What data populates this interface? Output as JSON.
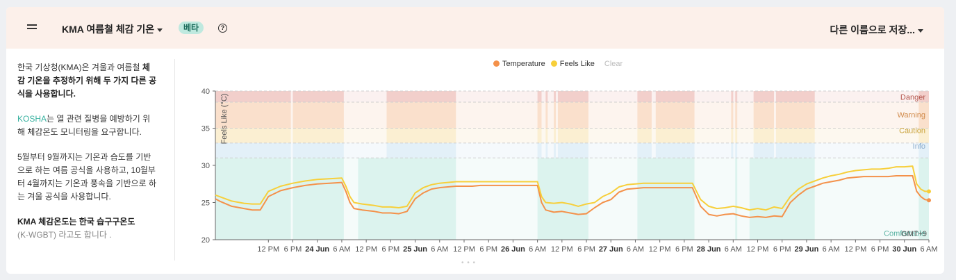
{
  "header": {
    "title": "KMA 여름철 체감 기온",
    "badge": "베타",
    "help_icon": "?",
    "save_label": "다른 이름으로 저장..."
  },
  "sidebar": {
    "p1_plain": "한국 기상청(KMA)은 겨울과 여름철 ",
    "p1_bold": "체감 기온을 추정하기 위해 두 가지 다른 공식을 사용합니다.",
    "p2_link": "KOSHA",
    "p2_rest": "는 열 관련 질병을 예방하기 위해 체감온도 모니터링을 요구합니다.",
    "p3": "5월부터 9월까지는 기온과 습도를 기반으로 하는 여름 공식을 사용하고, 10월부터 4월까지는 기온과 풍속을 기반으로 하는 겨울 공식을 사용합니다.",
    "p4_bold": "KMA 체감온도는 한국 습구구온도",
    "p4_muted": "(K-WGBT) 라고도 합니다 ."
  },
  "legend": {
    "temperature": "Temperature",
    "feels_like": "Feels Like",
    "clear": "Clear"
  },
  "colors": {
    "temperature": "#f4914a",
    "feels_like": "#f7cf3a",
    "danger": "#f2cfcb",
    "warning": "#fae0cc",
    "caution": "#fbefd2",
    "info": "#e3f0f8",
    "comfortable": "#dcf3ee",
    "danger_text": "#b3534a",
    "warning_text": "#d08a4a",
    "caution_text": "#c9a23a",
    "info_text": "#88aacc",
    "comfortable_text": "#5ab3a3"
  },
  "chart_data": {
    "type": "line",
    "ylabel": "Feels Like (°C)",
    "ylim": [
      20,
      40
    ],
    "yticks": [
      20,
      25,
      30,
      35,
      40
    ],
    "timezone": "GMT+9",
    "x_ticks": [
      "12 PM",
      "6 PM",
      "24 Jun",
      "6 AM",
      "12 PM",
      "6 PM",
      "25 Jun",
      "6 AM",
      "12 PM",
      "6 PM",
      "26 Jun",
      "6 AM",
      "12 PM",
      "6 PM",
      "27 Jun",
      "6 AM",
      "12 PM",
      "6 PM",
      "28 Jun",
      "6 AM",
      "12 PM",
      "6 PM",
      "29 Jun",
      "6 AM",
      "12 PM",
      "6 PM",
      "30 Jun",
      "6 AM"
    ],
    "x_range_hours": [
      -13,
      162
    ],
    "bands": [
      {
        "label": "Danger",
        "from": 38.5,
        "to": 40
      },
      {
        "label": "Warning",
        "from": 35,
        "to": 38.5
      },
      {
        "label": "Caution",
        "from": 33,
        "to": 35
      },
      {
        "label": "Info",
        "from": 31,
        "to": 33
      },
      {
        "label": "Comfortable",
        "from": 20,
        "to": 31
      }
    ],
    "band_active_intervals_hours": [
      [
        -13,
        5.5
      ],
      [
        6,
        18.5
      ],
      [
        29,
        46
      ],
      [
        66,
        67
      ],
      [
        68,
        68.5
      ],
      [
        70,
        70.5
      ],
      [
        71,
        78.5
      ],
      [
        90.5,
        94
      ],
      [
        95,
        104.5
      ],
      [
        113.5,
        114
      ],
      [
        114.5,
        115
      ],
      [
        119,
        124
      ],
      [
        124.5,
        134
      ],
      [
        159.5,
        162
      ]
    ],
    "comfortable_active_intervals_hours": [
      [
        -13,
        5.5
      ],
      [
        6,
        18.5
      ],
      [
        22,
        46
      ],
      [
        66,
        78.5
      ],
      [
        90.5,
        104.5
      ],
      [
        114.5,
        115
      ],
      [
        118,
        134
      ],
      [
        159.5,
        162
      ]
    ],
    "series": [
      {
        "name": "Temperature",
        "x": [
          -13,
          -12,
          -9,
          -6,
          -4,
          -3,
          -2,
          0,
          3,
          6,
          9,
          12,
          15,
          18,
          19,
          20,
          21,
          23,
          26,
          28,
          30,
          32,
          34,
          36,
          38,
          40,
          42,
          44,
          46,
          48,
          50,
          52,
          54,
          56,
          58,
          60,
          62,
          64,
          66,
          67,
          68,
          70,
          72,
          74,
          76,
          78,
          80,
          82,
          84,
          86,
          88,
          90,
          92,
          94,
          96,
          98,
          100,
          102,
          104,
          106,
          108,
          110,
          112,
          114,
          116,
          118,
          120,
          122,
          124,
          126,
          128,
          130,
          132,
          134,
          136,
          138,
          140,
          142,
          144,
          146,
          148,
          150,
          152,
          154,
          156,
          158,
          159,
          160,
          161,
          162
        ],
        "values": [
          25.5,
          25.2,
          24.5,
          24.2,
          24.0,
          24.0,
          24.0,
          25.8,
          26.6,
          27.0,
          27.3,
          27.5,
          27.6,
          27.7,
          26.5,
          25.0,
          24.2,
          24.0,
          23.8,
          23.6,
          23.6,
          23.5,
          23.8,
          25.5,
          26.3,
          26.8,
          27.0,
          27.1,
          27.2,
          27.2,
          27.2,
          27.3,
          27.3,
          27.3,
          27.3,
          27.3,
          27.3,
          27.3,
          27.3,
          25.0,
          24.0,
          23.7,
          23.8,
          23.6,
          23.4,
          23.5,
          24.3,
          25.0,
          25.4,
          26.4,
          26.8,
          26.9,
          27.0,
          27.0,
          27.0,
          27.0,
          27.0,
          27.0,
          27.0,
          24.5,
          23.4,
          23.2,
          23.4,
          23.5,
          23.2,
          23.0,
          23.1,
          23.0,
          23.2,
          23.1,
          25.0,
          26.0,
          26.8,
          27.2,
          27.6,
          27.8,
          28.0,
          28.3,
          28.4,
          28.5,
          28.5,
          28.5,
          28.5,
          28.6,
          28.6,
          28.6,
          26.5,
          25.8,
          25.4,
          25.3
        ]
      },
      {
        "name": "Feels Like",
        "x": [
          -13,
          -12,
          -9,
          -6,
          -4,
          -3,
          -2,
          0,
          3,
          6,
          9,
          12,
          15,
          18,
          19,
          20,
          21,
          23,
          26,
          28,
          30,
          32,
          34,
          36,
          38,
          40,
          42,
          44,
          46,
          48,
          50,
          52,
          54,
          56,
          58,
          60,
          62,
          64,
          66,
          67,
          68,
          70,
          72,
          74,
          76,
          78,
          80,
          82,
          84,
          86,
          88,
          90,
          92,
          94,
          96,
          98,
          100,
          102,
          104,
          106,
          108,
          110,
          112,
          114,
          116,
          118,
          120,
          122,
          124,
          126,
          128,
          130,
          132,
          134,
          136,
          138,
          140,
          142,
          144,
          146,
          148,
          150,
          152,
          154,
          156,
          158,
          159,
          160,
          161,
          162
        ],
        "values": [
          26.0,
          25.8,
          25.2,
          24.9,
          24.8,
          24.8,
          24.8,
          26.5,
          27.2,
          27.6,
          27.9,
          28.1,
          28.2,
          28.3,
          27.2,
          25.8,
          25.0,
          24.8,
          24.6,
          24.4,
          24.4,
          24.3,
          24.5,
          26.3,
          27.0,
          27.4,
          27.6,
          27.7,
          27.8,
          27.8,
          27.8,
          27.8,
          27.8,
          27.8,
          27.8,
          27.8,
          27.8,
          27.8,
          27.8,
          25.8,
          25.0,
          24.9,
          25.0,
          24.8,
          24.5,
          24.8,
          25.0,
          25.8,
          26.3,
          27.1,
          27.4,
          27.5,
          27.6,
          27.6,
          27.6,
          27.6,
          27.6,
          27.6,
          27.6,
          25.4,
          24.5,
          24.2,
          24.3,
          24.5,
          24.3,
          24.0,
          24.2,
          24.0,
          24.4,
          24.2,
          25.8,
          26.8,
          27.5,
          27.9,
          28.3,
          28.6,
          28.8,
          29.1,
          29.3,
          29.4,
          29.5,
          29.5,
          29.6,
          29.8,
          29.8,
          29.9,
          27.5,
          26.8,
          26.5,
          26.5
        ]
      }
    ]
  }
}
